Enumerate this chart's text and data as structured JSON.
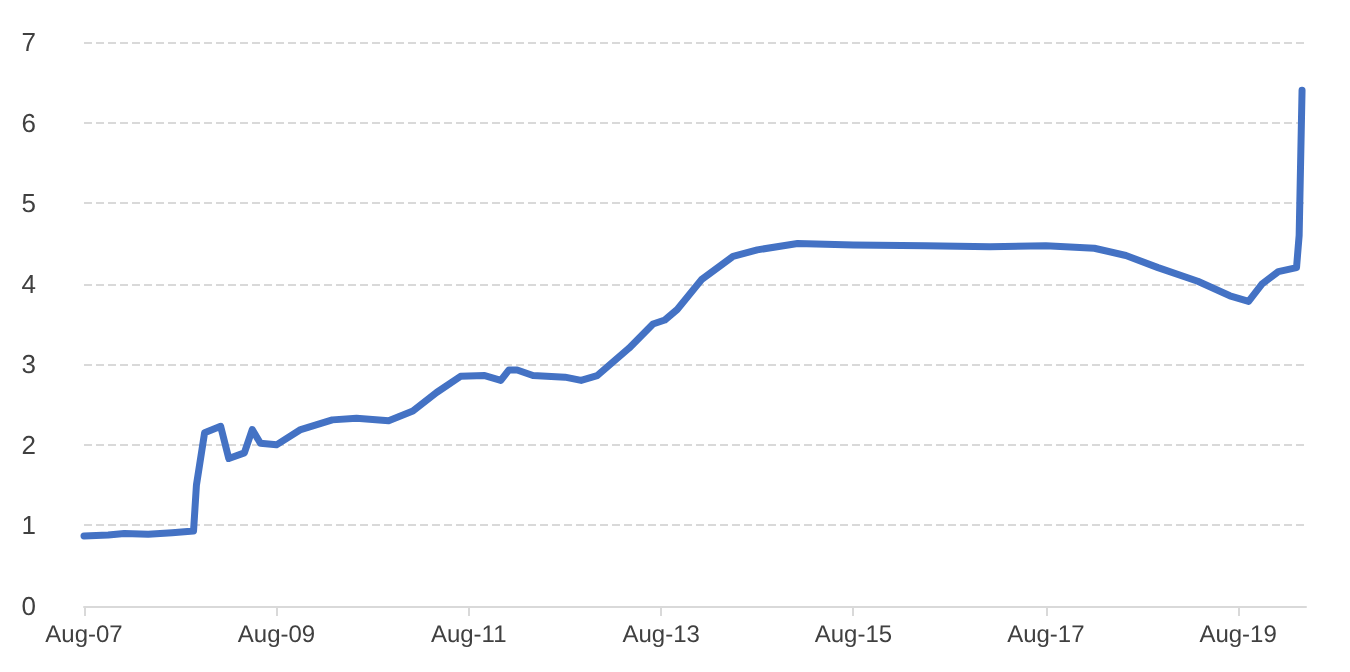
{
  "chart_data": {
    "type": "line",
    "x": [
      "2007-08-01",
      "2007-11-01",
      "2008-01-01",
      "2008-04-01",
      "2008-07-01",
      "2008-09-20",
      "2008-10-01",
      "2008-11-01",
      "2009-01-01",
      "2009-02-01",
      "2009-04-01",
      "2009-05-01",
      "2009-06-01",
      "2009-08-01",
      "2009-11-01",
      "2010-03-01",
      "2010-06-01",
      "2010-10-01",
      "2011-01-01",
      "2011-04-01",
      "2011-07-01",
      "2011-10-01",
      "2011-12-01",
      "2012-01-01",
      "2012-02-01",
      "2012-04-01",
      "2012-08-01",
      "2012-10-01",
      "2012-12-01",
      "2013-04-01",
      "2013-07-01",
      "2013-08-15",
      "2013-10-01",
      "2014-01-01",
      "2014-05-01",
      "2014-08-01",
      "2015-01-01",
      "2015-08-01",
      "2016-05-01",
      "2017-01-01",
      "2017-08-01",
      "2018-02-01",
      "2018-06-01",
      "2018-10-01",
      "2019-03-01",
      "2019-07-01",
      "2019-09-10",
      "2019-11-01",
      "2020-01-01",
      "2020-03-10",
      "2020-03-20",
      "2020-03-31"
    ],
    "series": [
      {
        "color": "#4472c4",
        "values": [
          0.87,
          0.88,
          0.9,
          0.89,
          0.91,
          0.93,
          1.5,
          2.15,
          2.23,
          1.83,
          1.9,
          2.19,
          2.02,
          2.0,
          2.19,
          2.31,
          2.33,
          2.3,
          2.42,
          2.65,
          2.85,
          2.86,
          2.8,
          2.93,
          2.93,
          2.86,
          2.84,
          2.8,
          2.86,
          3.2,
          3.5,
          3.55,
          3.68,
          4.05,
          4.34,
          4.42,
          4.5,
          4.48,
          4.47,
          4.46,
          4.47,
          4.44,
          4.35,
          4.2,
          4.03,
          3.85,
          3.78,
          4.0,
          4.15,
          4.2,
          4.6,
          6.4
        ]
      }
    ],
    "xlim": [
      "2007-08-01",
      "2020-04-15"
    ],
    "xticks": [
      {
        "value": "2007-08-01",
        "label": "Aug-07"
      },
      {
        "value": "2009-08-01",
        "label": "Aug-09"
      },
      {
        "value": "2011-08-01",
        "label": "Aug-11"
      },
      {
        "value": "2013-08-01",
        "label": "Aug-13"
      },
      {
        "value": "2015-08-01",
        "label": "Aug-15"
      },
      {
        "value": "2017-08-01",
        "label": "Aug-17"
      },
      {
        "value": "2019-08-01",
        "label": "Aug-19"
      }
    ],
    "ylim": [
      0,
      7
    ],
    "yticks": [
      0,
      1,
      2,
      3,
      4,
      5,
      6,
      7
    ],
    "grid": "y",
    "marker": "none",
    "line_style": "solid"
  }
}
